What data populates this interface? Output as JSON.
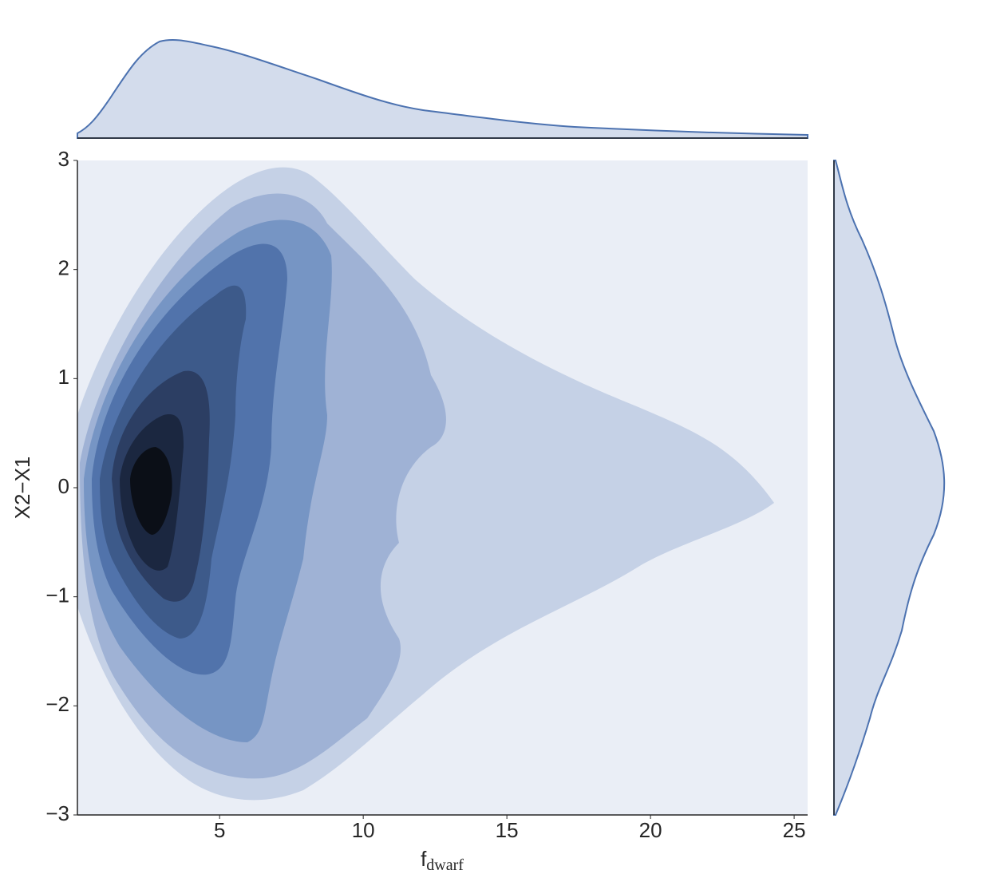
{
  "chart_data": {
    "type": "kde-joint",
    "xlabel": {
      "main": "f",
      "sub": "dwarf"
    },
    "ylabel": "X2−X1",
    "xlim": [
      0.05,
      25.47
    ],
    "xticks": [
      5,
      10,
      15,
      20,
      25
    ],
    "ylim": [
      -3,
      3
    ],
    "yticks": [
      {
        "value": -3,
        "label": "−3"
      },
      {
        "value": -2,
        "label": "−2"
      },
      {
        "value": -1,
        "label": "−1"
      },
      0,
      1,
      2,
      3
    ],
    "color": "#4c72b0"
  }
}
